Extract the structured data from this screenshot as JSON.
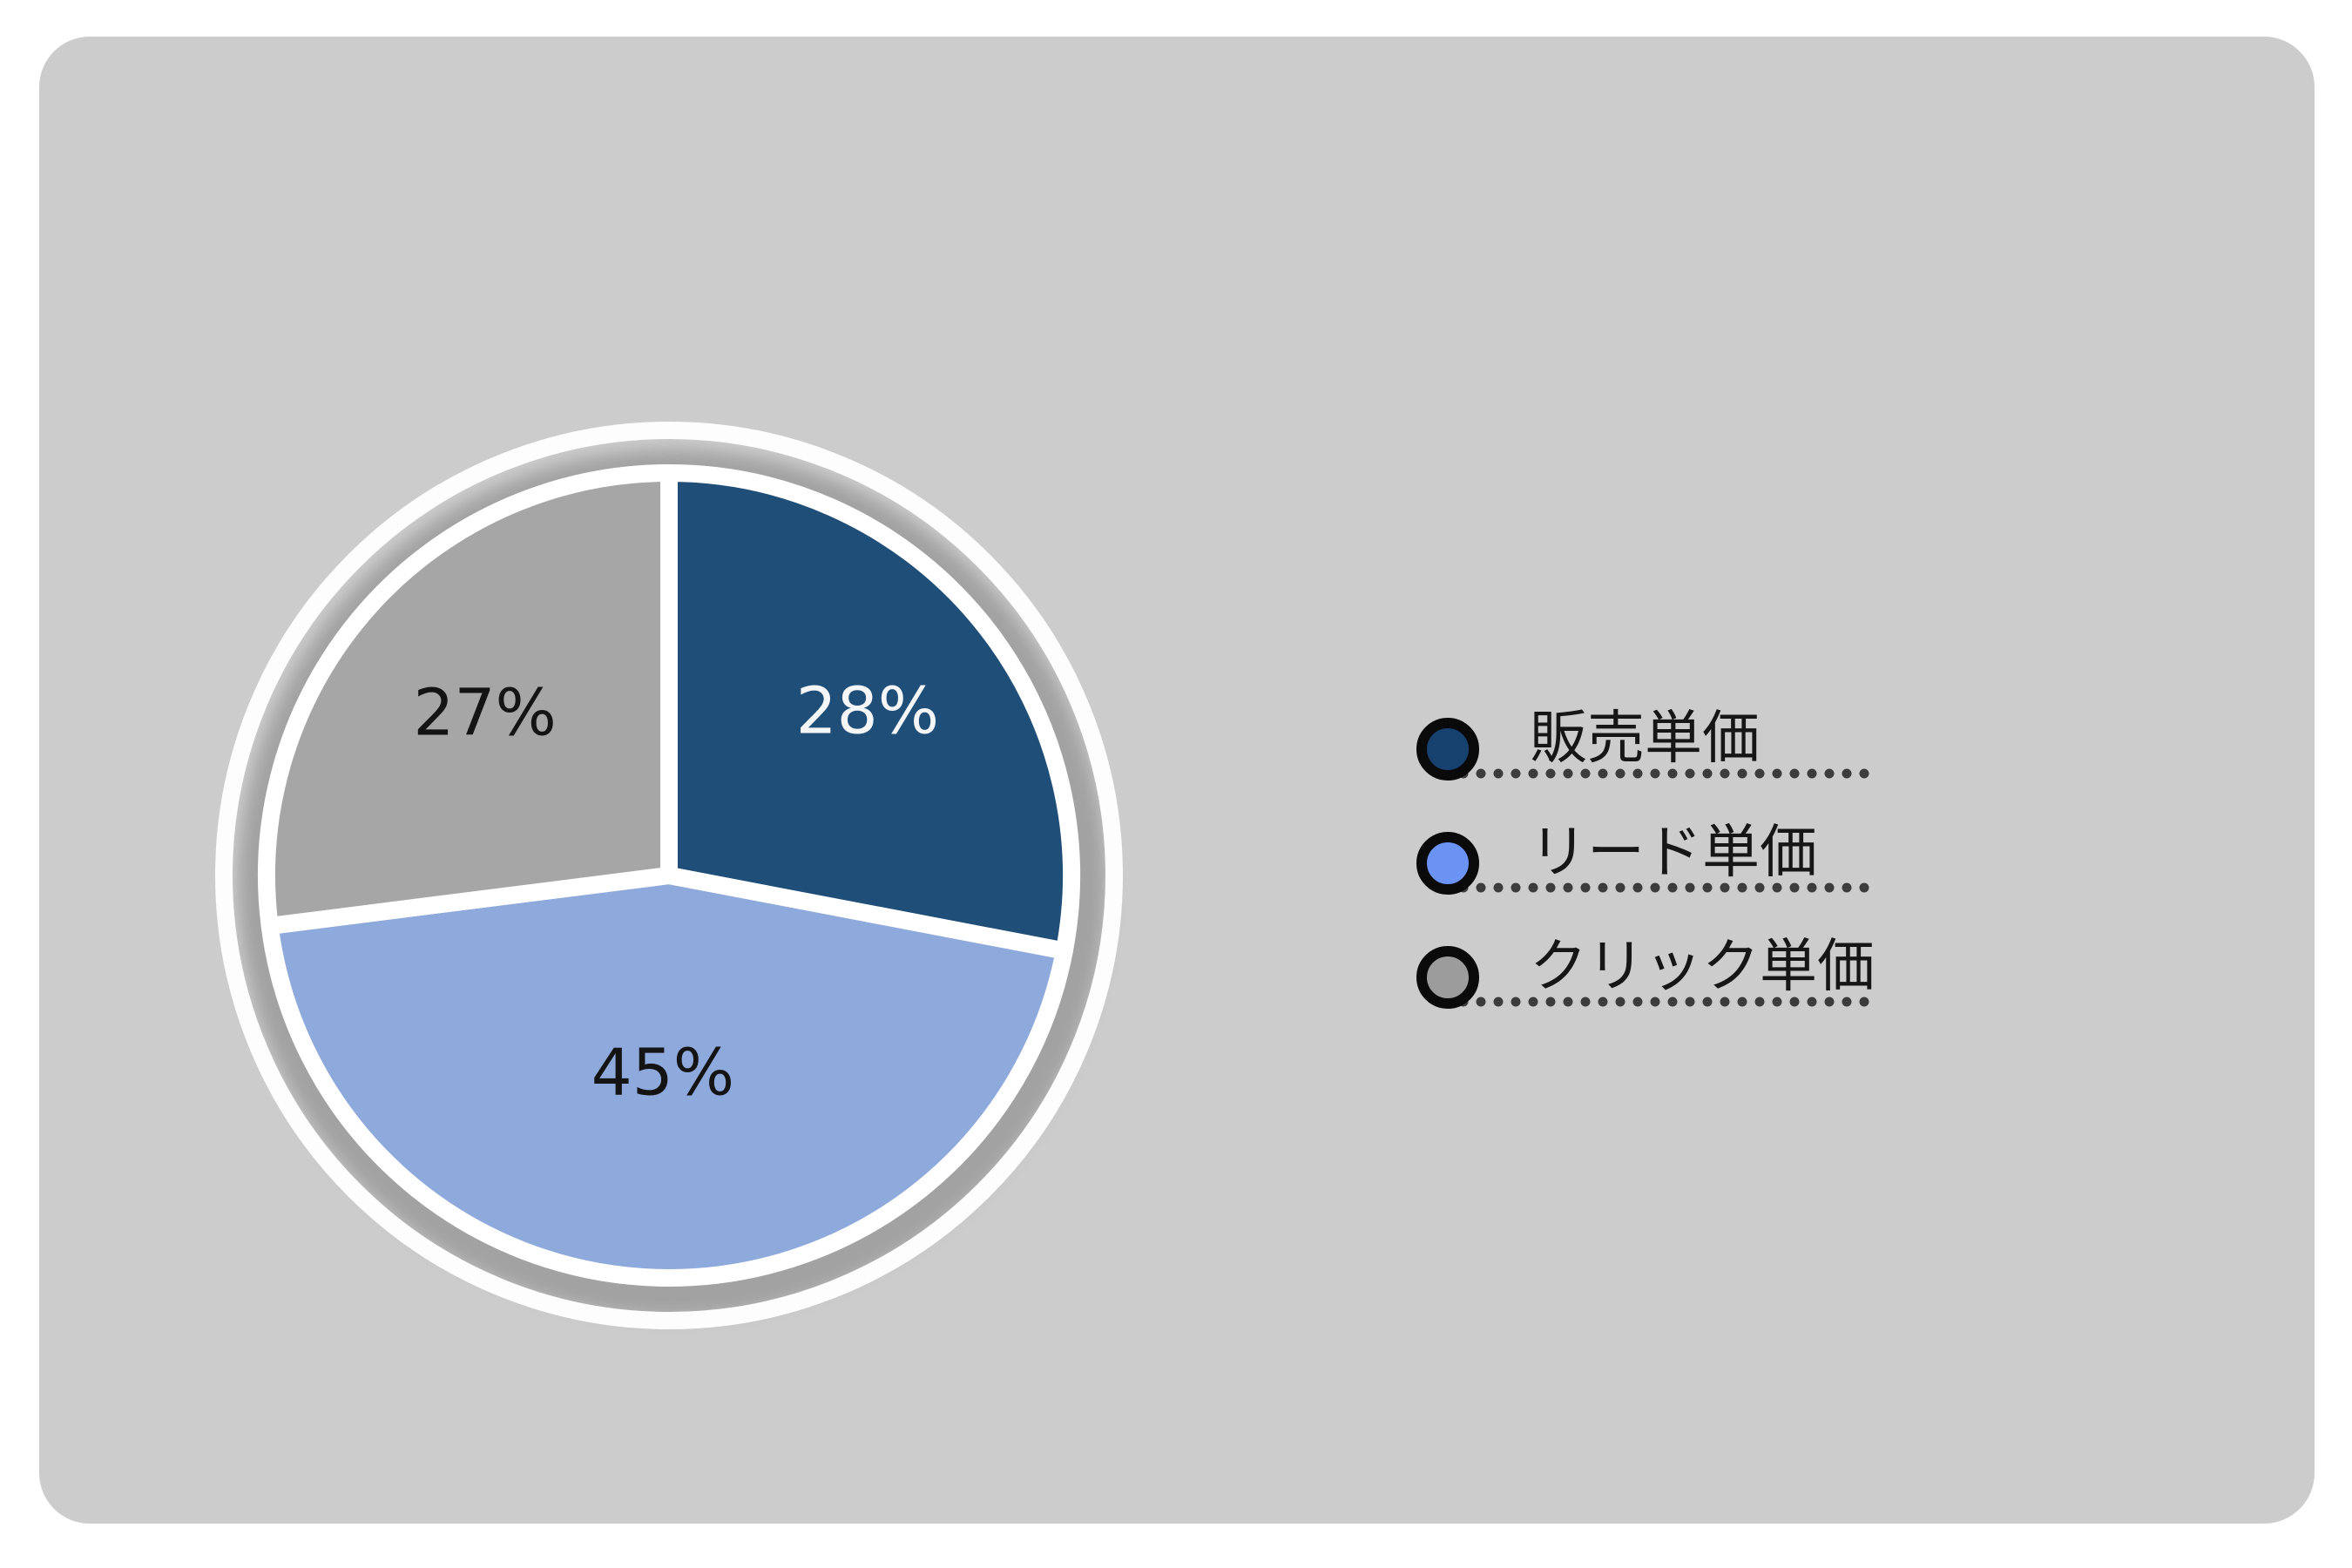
{
  "chart_data": {
    "type": "pie",
    "title": "",
    "unit": "%",
    "direction": "clockwise",
    "start_angle_deg": 0,
    "legend_position": "right",
    "series": [
      {
        "label": "販売単価",
        "value": 28,
        "display": "28%",
        "color": "#1F4E79",
        "label_color": "#F4F6F8"
      },
      {
        "label": "リード単価",
        "value": 45,
        "display": "45%",
        "color": "#8EA9DB",
        "label_color": "#141414"
      },
      {
        "label": "クリック単価",
        "value": 27,
        "display": "27%",
        "color": "#A6A6A6",
        "label_color": "#141414"
      }
    ]
  },
  "legend": {
    "items": [
      {
        "label": "販売単価",
        "swatch_color": "#17416F",
        "swatch_border": "#0A0A0A"
      },
      {
        "label": "リード単価",
        "swatch_color": "#6B93F3",
        "swatch_border": "#0A0A0A"
      },
      {
        "label": "クリック単価",
        "swatch_color": "#9C9C9C",
        "swatch_border": "#0A0A0A"
      }
    ],
    "dot_color": "#3C3C3C",
    "text_color": "#161616"
  },
  "colors": {
    "page_bg": "#FFFFFF",
    "panel_bg": "#CCCCCC",
    "plate_ring": "#FDFDFD",
    "slice_border": "#FFFFFF",
    "shadow": "#A2A2A2"
  }
}
